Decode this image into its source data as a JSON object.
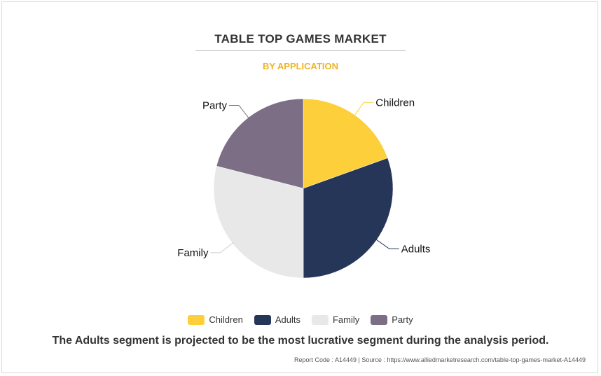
{
  "header": {
    "title": "TABLE TOP GAMES MARKET",
    "subtitle": "BY APPLICATION"
  },
  "chart_data": {
    "type": "pie",
    "categories": [
      "Children",
      "Adults",
      "Family",
      "Party"
    ],
    "values": [
      19.5,
      30.5,
      29,
      21
    ],
    "colors": [
      "#fdd03b",
      "#253659",
      "#e8e8e8",
      "#7c6e84"
    ],
    "legend_position": "bottom"
  },
  "footnote": "The Adults segment is projected to be the most lucrative segment during the analysis period.",
  "source": "Report Code : A14449  |  Source : https://www.alliedmarketresearch.com/table-top-games-market-A14449"
}
